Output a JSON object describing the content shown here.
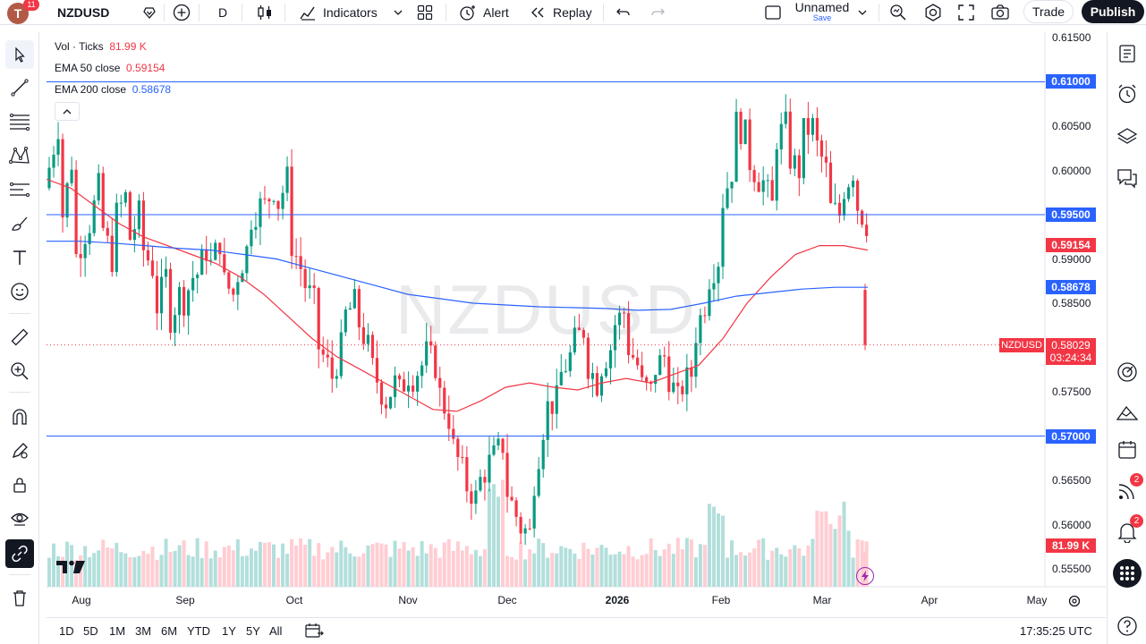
{
  "toolbar": {
    "avatar_letter": "T",
    "notification_count": "11",
    "symbol": "NZDUSD",
    "interval": "D",
    "indicators_label": "Indicators",
    "alert_label": "Alert",
    "replay_label": "Replay",
    "layout_name": "Unnamed",
    "layout_save_label": "Save",
    "trade_label": "Trade",
    "publish_label": "Publish"
  },
  "legend": {
    "vol_label": "Vol · Ticks",
    "vol_value": "81.99 K",
    "ema50_label": "EMA 50 close",
    "ema50_value": "0.59154",
    "ema200_label": "EMA 200 close",
    "ema200_value": "0.58678"
  },
  "watermark": "NZDUSD",
  "price_axis": {
    "ticks": [
      "0.61500",
      "0.61000",
      "0.60500",
      "0.60000",
      "0.59500",
      "0.59000",
      "0.58500",
      "0.58000",
      "0.57500",
      "0.57000",
      "0.56500",
      "0.56000",
      "0.55500"
    ],
    "tags": {
      "h1": "0.61000",
      "h2": "0.59500",
      "ema50": "0.59154",
      "ema200": "0.58678",
      "symbol_tag": "NZDUSD",
      "last": "0.58029",
      "countdown": "03:24:34",
      "h3": "0.57000",
      "volume": "81.99 K"
    }
  },
  "time_axis": [
    "Aug",
    "Sep",
    "Oct",
    "Nov",
    "Dec",
    "2026",
    "Feb",
    "Mar",
    "Apr",
    "May"
  ],
  "bottom": {
    "ranges": [
      "1D",
      "5D",
      "1M",
      "3M",
      "6M",
      "YTD",
      "1Y",
      "5Y",
      "All"
    ],
    "clock": "17:35:25 UTC"
  },
  "right_badges": {
    "streams": "2",
    "notifications": "2"
  },
  "colors": {
    "up": "#089981",
    "down": "#f23645",
    "ema50": "#f23645",
    "ema200": "#2962ff",
    "hline": "#2962ff",
    "vol_up": "#b2dfdb",
    "vol_down": "#ffcdd2"
  },
  "chart_data": {
    "type": "candlestick",
    "symbol": "NZDUSD",
    "interval": "D",
    "horizontal_lines": [
      0.61,
      0.595,
      0.57
    ],
    "last_price": 0.58029,
    "ylim": [
      0.553,
      0.616
    ],
    "price_path": [
      [
        0.598,
        0.605
      ],
      [
        0.592,
        0.601
      ],
      [
        0.589,
        0.593
      ],
      [
        0.592,
        0.598
      ],
      [
        0.595,
        0.59
      ],
      [
        0.594,
        0.597
      ],
      [
        0.591,
        0.595
      ],
      [
        0.592,
        0.589
      ],
      [
        0.583,
        0.588
      ],
      [
        0.582,
        0.586
      ],
      [
        0.584,
        0.588
      ],
      [
        0.587,
        0.591
      ],
      [
        0.588,
        0.592
      ],
      [
        0.588,
        0.586
      ],
      [
        0.587,
        0.591
      ],
      [
        0.594,
        0.596
      ],
      [
        0.595,
        0.598
      ],
      [
        0.595,
        0.599
      ],
      [
        0.593,
        0.589
      ],
      [
        0.588,
        0.585
      ],
      [
        0.581,
        0.578
      ],
      [
        0.575,
        0.58
      ],
      [
        0.583,
        0.585
      ],
      [
        0.584,
        0.58
      ],
      [
        0.579,
        0.575
      ],
      [
        0.573,
        0.576
      ],
      [
        0.574,
        0.577
      ],
      [
        0.576,
        0.578
      ],
      [
        0.58,
        0.578
      ],
      [
        0.576,
        0.572
      ],
      [
        0.57,
        0.566
      ],
      [
        0.565,
        0.563
      ],
      [
        0.564,
        0.567
      ],
      [
        0.567,
        0.569
      ],
      [
        0.565,
        0.561
      ],
      [
        0.56,
        0.559
      ],
      [
        0.562,
        0.571
      ],
      [
        0.573,
        0.574
      ],
      [
        0.576,
        0.579
      ],
      [
        0.58,
        0.582
      ],
      [
        0.579,
        0.576
      ],
      [
        0.577,
        0.58
      ],
      [
        0.582,
        0.584
      ],
      [
        0.581,
        0.578
      ],
      [
        0.576,
        0.575
      ],
      [
        0.577,
        0.579
      ],
      [
        0.578,
        0.574
      ],
      [
        0.575,
        0.577
      ],
      [
        0.58,
        0.585
      ],
      [
        0.587,
        0.59
      ],
      [
        0.595,
        0.6
      ],
      [
        0.606,
        0.604
      ],
      [
        0.602,
        0.599
      ],
      [
        0.6,
        0.596
      ],
      [
        0.603,
        0.605
      ],
      [
        0.602,
        0.6
      ],
      [
        0.604,
        0.605
      ],
      [
        0.604,
        0.6
      ],
      [
        0.596,
        0.595
      ],
      [
        0.597,
        0.6
      ],
      [
        0.597,
        0.594
      ],
      [
        0.59,
        0.587
      ],
      [
        0.59,
        0.593
      ],
      [
        0.592,
        0.588
      ],
      [
        0.586,
        0.591
      ],
      [
        0.59,
        0.586
      ],
      [
        0.583,
        0.58
      ]
    ],
    "ema50_values": [
      0.599,
      0.598,
      0.596,
      0.594,
      0.5925,
      0.5915,
      0.5905,
      0.5895,
      0.588,
      0.586,
      0.5835,
      0.581,
      0.579,
      0.5775,
      0.576,
      0.5745,
      0.573,
      0.5728,
      0.574,
      0.5755,
      0.576,
      0.5755,
      0.5752,
      0.576,
      0.5765,
      0.576,
      0.577,
      0.578,
      0.581,
      0.585,
      0.588,
      0.5905,
      0.5915,
      0.5915,
      0.591
    ],
    "ema200_values": [
      0.592,
      0.592,
      0.5918,
      0.5915,
      0.5912,
      0.591,
      0.5905,
      0.59,
      0.589,
      0.588,
      0.587,
      0.586,
      0.5855,
      0.585,
      0.5848,
      0.5846,
      0.5845,
      0.5844,
      0.5842,
      0.5843,
      0.585,
      0.5858,
      0.5862,
      0.5866,
      0.5868,
      0.5868
    ]
  }
}
